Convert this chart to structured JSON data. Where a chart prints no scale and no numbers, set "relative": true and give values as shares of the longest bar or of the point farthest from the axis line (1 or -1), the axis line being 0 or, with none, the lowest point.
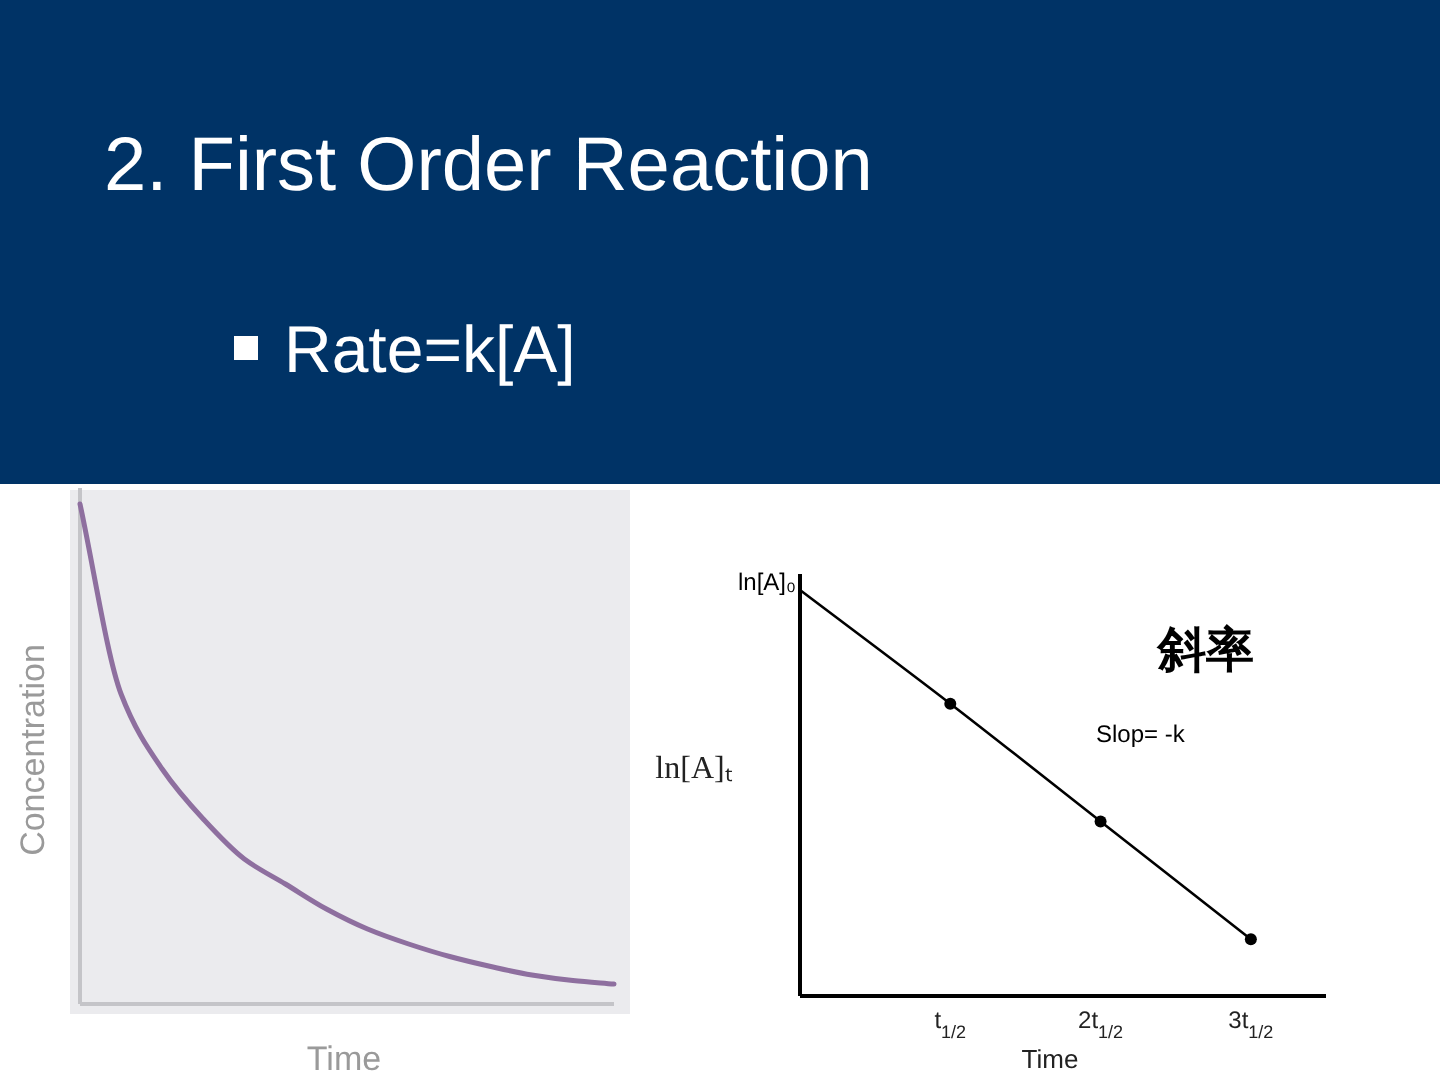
{
  "chart_data": [
    {
      "type": "line",
      "title": "2. First Order Reaction",
      "subtitle": "Rate=k[A]",
      "xlabel": "Time",
      "ylabel": "Concentration",
      "relative": true,
      "categories": [
        null,
        null,
        null,
        null,
        null,
        null,
        null,
        null,
        null,
        null,
        null,
        null,
        null,
        null
      ],
      "series": [
        {
          "color": "#8e6f9f",
          "values": [
            1,
            0.62,
            0.47,
            0.37,
            0.29,
            0.24,
            0.19,
            0.15,
            0.12,
            0.095,
            0.075,
            0.058,
            0.047,
            0.04
          ]
        }
      ]
    },
    {
      "type": "line",
      "xlabel": "Time",
      "ylabel": "ln[A]ₜ",
      "relative": true,
      "categories": [
        null,
        "t$_{1/2}$",
        "2t$_{1/2}$",
        "3t$_{1/2}$"
      ],
      "annotations": [
        "ln[A]₀",
        "斜率",
        "Slop= -k"
      ],
      "series": [
        {
          "color": "#000000",
          "values": [
            1,
            0.72,
            0.43,
            0.14
          ],
          "marker": "none"
        },
        {
          "type": "scatter",
          "color": "#000000",
          "values": [
            null,
            0.72,
            0.43,
            0.14
          ],
          "marker": "circle"
        }
      ]
    }
  ]
}
